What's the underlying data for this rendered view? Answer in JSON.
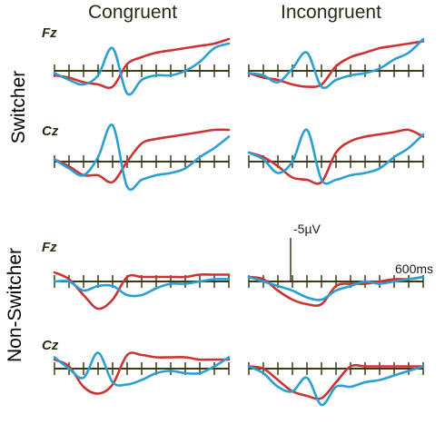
{
  "columns": [
    "Congruent",
    "Incongruent"
  ],
  "groups": [
    "Switcher",
    "Non-Switcher"
  ],
  "electrodes": [
    "Fz",
    "Cz"
  ],
  "scale": {
    "amplitude_label": "-5µV",
    "time_label": "600ms"
  },
  "colors": {
    "red_series": "#cc3333",
    "blue_series": "#2a9fd2",
    "axis": "#3b3b1c"
  },
  "chart_data": {
    "type": "line",
    "x_unit": "ms",
    "x": [
      0,
      50,
      100,
      150,
      200,
      250,
      300,
      350,
      400,
      450,
      500,
      550,
      600
    ],
    "xlim": [
      0,
      600
    ],
    "y_unit": "µV",
    "ylim_negative_up": [
      -5,
      10
    ],
    "panels": [
      {
        "group": "Switcher",
        "condition": "Congruent",
        "electrode": "Fz",
        "series": [
          {
            "color": "red",
            "values": [
              -1,
              -1.5,
              -2.5,
              -3,
              -3.5,
              1.5,
              3,
              4,
              4.5,
              5,
              5.5,
              6,
              7
            ]
          },
          {
            "color": "blue",
            "values": [
              -0.5,
              -2,
              -3,
              -1,
              5,
              -5,
              -2,
              -1,
              -1,
              0,
              2,
              5,
              6
            ]
          }
        ]
      },
      {
        "group": "Switcher",
        "condition": "Incongruent",
        "electrode": "Fz",
        "series": [
          {
            "color": "red",
            "values": [
              -0.5,
              -1.5,
              -2,
              -3,
              -3.5,
              -3,
              1,
              3,
              4,
              5,
              5.5,
              6,
              6.5
            ]
          },
          {
            "color": "blue",
            "values": [
              -0.5,
              -1,
              -2.5,
              0.5,
              4,
              -3.5,
              -2,
              -1,
              -0.5,
              0.5,
              2.5,
              4,
              7
            ]
          }
        ]
      },
      {
        "group": "Switcher",
        "condition": "Congruent",
        "electrode": "Cz",
        "series": [
          {
            "color": "red",
            "values": [
              0.5,
              -1,
              -3,
              -3,
              -4.5,
              0,
              4,
              5,
              5.5,
              6,
              6.5,
              7,
              7
            ]
          },
          {
            "color": "blue",
            "values": [
              0.5,
              -1.5,
              -3,
              1,
              8,
              -5.5,
              -4,
              -3,
              -2.5,
              -1.5,
              1,
              3,
              5.5
            ]
          }
        ]
      },
      {
        "group": "Switcher",
        "condition": "Incongruent",
        "electrode": "Cz",
        "series": [
          {
            "color": "red",
            "values": [
              2,
              1,
              -1,
              -3.5,
              -4,
              -4.5,
              2,
              4.5,
              5.5,
              6,
              6.5,
              7,
              5.5
            ]
          },
          {
            "color": "blue",
            "values": [
              2,
              0.5,
              -2.5,
              0,
              7,
              -4,
              -4,
              -3,
              -2.5,
              -1.5,
              1,
              3,
              6
            ]
          }
        ]
      },
      {
        "group": "Non-Switcher",
        "condition": "Congruent",
        "electrode": "Fz",
        "series": [
          {
            "color": "red",
            "values": [
              2,
              0.5,
              -3,
              -6,
              -4,
              1,
              1,
              1,
              1,
              1,
              1.5,
              1.5,
              1.5
            ]
          },
          {
            "color": "blue",
            "values": [
              0,
              0,
              -2,
              -1,
              -1,
              -3,
              -3,
              -1.5,
              -0.5,
              -0.5,
              0,
              0.5,
              0.5
            ]
          }
        ]
      },
      {
        "group": "Non-Switcher",
        "condition": "Incongruent",
        "electrode": "Fz",
        "series": [
          {
            "color": "red",
            "values": [
              1,
              0.5,
              -2,
              -4,
              -5,
              -5,
              -1,
              -0.5,
              -0.5,
              0,
              0.5,
              0.5,
              1
            ]
          },
          {
            "color": "blue",
            "values": [
              1,
              0,
              -1,
              -2,
              -3.5,
              -4,
              -2,
              -1,
              0,
              -0.5,
              0,
              0.5,
              1
            ]
          }
        ]
      },
      {
        "group": "Non-Switcher",
        "condition": "Congruent",
        "electrode": "Cz",
        "series": [
          {
            "color": "red",
            "values": [
              2,
              0.5,
              -4,
              -5.5,
              -3.5,
              3,
              3,
              2.5,
              2.5,
              2.5,
              2,
              2,
              2
            ]
          },
          {
            "color": "blue",
            "values": [
              2.5,
              0,
              -2,
              3.5,
              -3,
              -3.5,
              -2.5,
              -1,
              -0.5,
              -1,
              -1,
              0.5,
              2.5
            ]
          }
        ]
      },
      {
        "group": "Non-Switcher",
        "condition": "Incongruent",
        "electrode": "Cz",
        "series": [
          {
            "color": "red",
            "values": [
              0.5,
              0,
              -2.5,
              -5,
              -6,
              -6.5,
              -3,
              0.5,
              0.5,
              0.5,
              0.5,
              0.5,
              0.5
            ]
          },
          {
            "color": "blue",
            "values": [
              0.5,
              -1,
              -4,
              -5,
              -2,
              -8,
              -4,
              -4,
              -3,
              -2.5,
              -1.5,
              -0.5,
              0.5
            ]
          }
        ]
      }
    ]
  }
}
